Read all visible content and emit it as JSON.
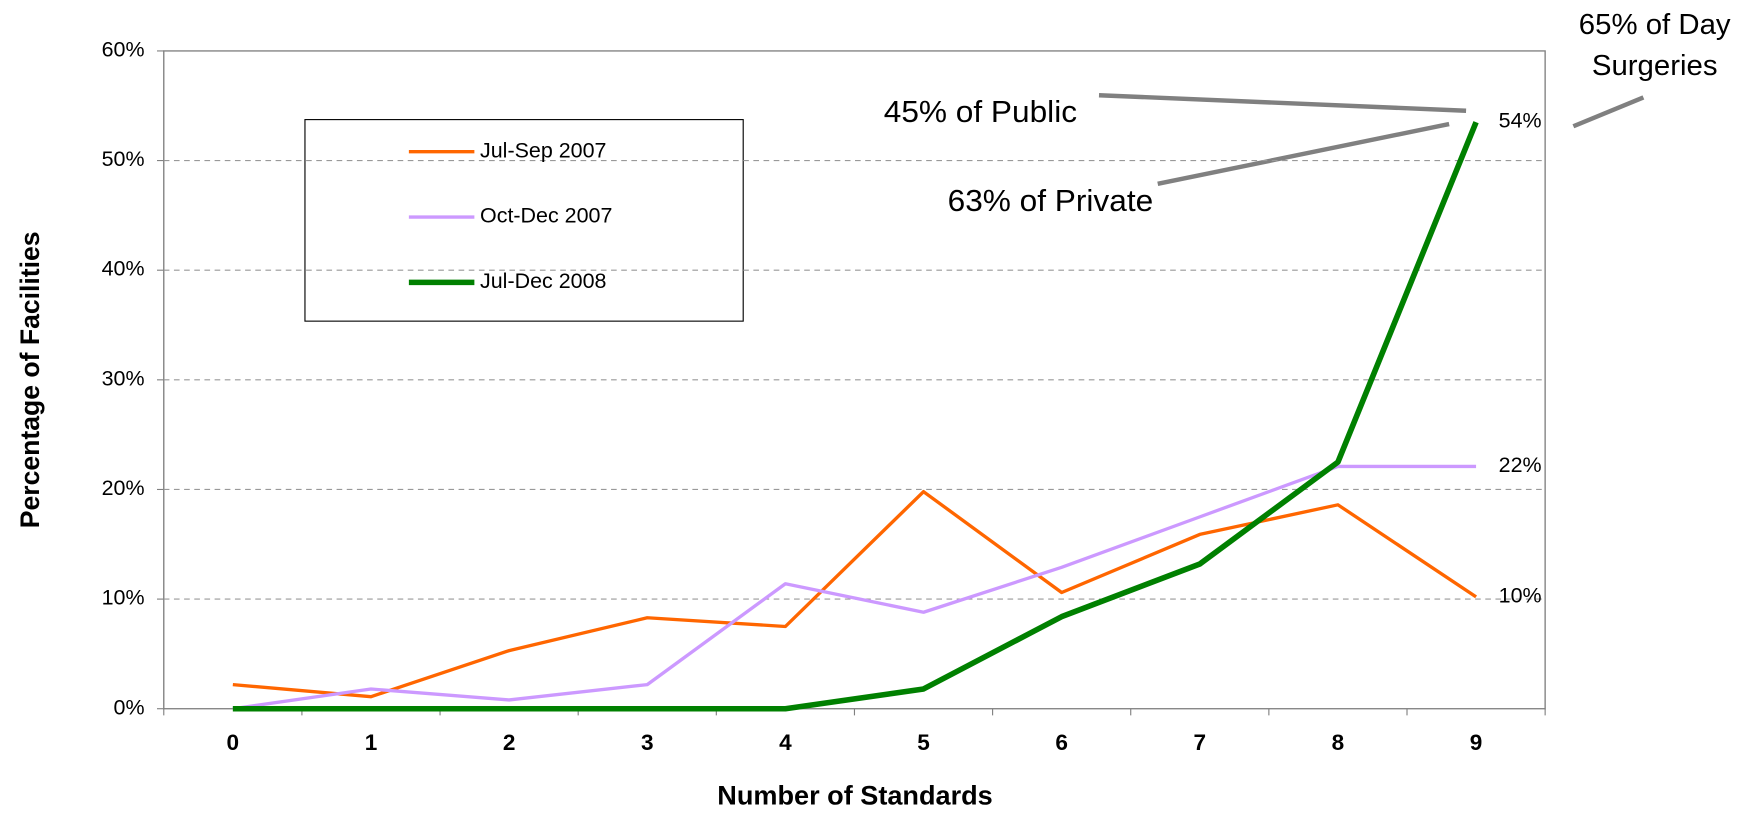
{
  "chart_data": {
    "type": "line",
    "categories": [
      "0",
      "1",
      "2",
      "3",
      "4",
      "5",
      "6",
      "7",
      "8",
      "9"
    ],
    "series": [
      {
        "name": "Jul-Sep 2007",
        "color": "#ff6600",
        "values": [
          2.2,
          1.1,
          5.3,
          8.3,
          7.5,
          19.8,
          10.6,
          15.9,
          18.6,
          10.2
        ],
        "value_labels": [
          null,
          null,
          null,
          null,
          null,
          null,
          null,
          null,
          null,
          "10%"
        ]
      },
      {
        "name": "Oct-Dec 2007",
        "color": "#cc99ff",
        "values": [
          0,
          1.8,
          0.8,
          2.2,
          11.4,
          8.8,
          12.9,
          17.5,
          22.1,
          22.1
        ],
        "value_labels": [
          null,
          null,
          null,
          null,
          null,
          null,
          null,
          null,
          null,
          "22%"
        ]
      },
      {
        "name": "Jul-Dec 2008",
        "color": "#008000",
        "values": [
          0,
          0,
          0,
          0,
          0,
          1.8,
          8.4,
          13.2,
          22.5,
          53.5
        ],
        "value_labels": [
          null,
          null,
          null,
          null,
          null,
          null,
          null,
          null,
          null,
          "54%"
        ]
      }
    ],
    "ylim": [
      0,
      60
    ],
    "yticks": [
      {
        "value": 0,
        "label": "0%"
      },
      {
        "value": 10,
        "label": "10%"
      },
      {
        "value": 20,
        "label": "20%"
      },
      {
        "value": 30,
        "label": "30%"
      },
      {
        "value": 40,
        "label": "40%"
      },
      {
        "value": 50,
        "label": "50%"
      },
      {
        "value": 60,
        "label": "60%"
      }
    ],
    "x_label": "Number of Standards",
    "y_label": "Percentage of Facilities",
    "grid": true,
    "legend": "upper left",
    "annotations": [
      {
        "lines": [
          "65% of Day",
          "Surgeries"
        ],
        "color": "#000000"
      },
      {
        "lines": [
          "45% of Public"
        ],
        "color": "#ff0000"
      },
      {
        "lines": [
          "63% of Private"
        ],
        "color": "#000000"
      }
    ]
  }
}
